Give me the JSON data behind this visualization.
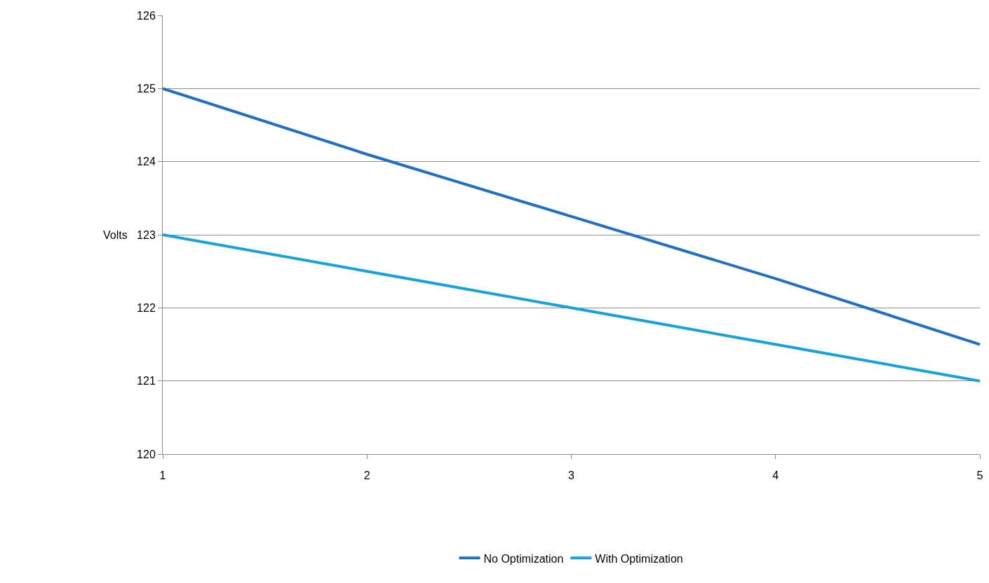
{
  "chart_data": {
    "type": "line",
    "ylabel": "Volts",
    "x": [
      1,
      2,
      3,
      4,
      5
    ],
    "series": [
      {
        "name": "No Optimization",
        "color": "#1f6fc5",
        "values": [
          125,
          124.1,
          123.25,
          122.4,
          121.5
        ]
      },
      {
        "name": "With Optimization",
        "color": "#17a2dc",
        "values": [
          123,
          122.5,
          122,
          121.5,
          121
        ]
      }
    ],
    "xlim": [
      1,
      5
    ],
    "xticks": [
      1,
      2,
      3,
      4,
      5
    ],
    "ylim": [
      120,
      126
    ],
    "yticks": [
      120,
      121,
      122,
      123,
      124,
      125,
      126
    ],
    "grid": "y",
    "legend": "bottom",
    "marker": "none",
    "line_style": "solid"
  }
}
